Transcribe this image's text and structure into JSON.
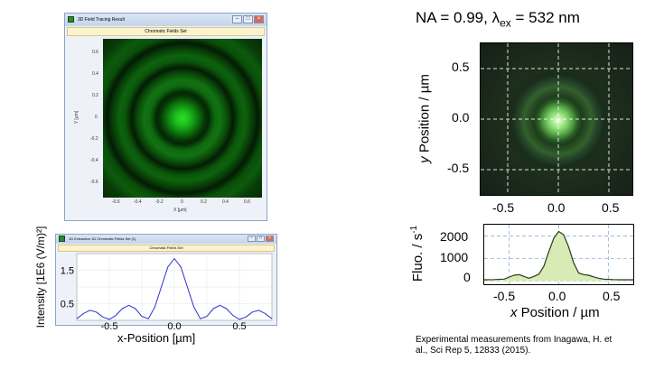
{
  "sim_field_window": {
    "title": "3D Field Tracing Result",
    "subtitle": "Chromatic Fields Set",
    "controls": [
      "–",
      "□",
      "×"
    ],
    "xlabel": "X [µm]",
    "ylabel": "Y [µm]",
    "xticks": [
      "-0.6",
      "-0.4",
      "-0.2",
      "0",
      "0.2",
      "0.4",
      "0.6"
    ],
    "yticks": [
      "0.6",
      "0.4",
      "0.2",
      "0",
      "-0.2",
      "-0.4",
      "-0.6"
    ],
    "colormap_color": "#1fd21f"
  },
  "sim_profile_window": {
    "title": "1D Extraction 1D Chromatic Fields Set (1)",
    "subtitle": "Chromatic Fields Set",
    "controls": [
      "–",
      "□",
      "×"
    ],
    "line_color": "#3030d0",
    "yticks": [
      "1.5",
      "0.5"
    ],
    "xticks": [
      "-0.5",
      "0.0",
      "0.5"
    ],
    "xlabel": "x-Position [µm]",
    "ylabel": "Intensity [1E6 (V/m)²]",
    "chart_data": {
      "type": "line",
      "x": [
        -0.75,
        -0.7,
        -0.65,
        -0.6,
        -0.55,
        -0.5,
        -0.45,
        -0.4,
        -0.35,
        -0.3,
        -0.25,
        -0.2,
        -0.15,
        -0.1,
        -0.05,
        0.0,
        0.05,
        0.1,
        0.15,
        0.2,
        0.25,
        0.3,
        0.35,
        0.4,
        0.45,
        0.5,
        0.55,
        0.6,
        0.65,
        0.7,
        0.75
      ],
      "values": [
        0.05,
        0.2,
        0.3,
        0.25,
        0.1,
        0.03,
        0.15,
        0.35,
        0.45,
        0.35,
        0.12,
        0.05,
        0.4,
        1.0,
        1.6,
        1.85,
        1.6,
        1.0,
        0.4,
        0.05,
        0.12,
        0.35,
        0.45,
        0.35,
        0.15,
        0.03,
        0.1,
        0.25,
        0.3,
        0.2,
        0.05
      ],
      "xlim": [
        -0.75,
        0.75
      ],
      "ylim": [
        0,
        2.0
      ]
    }
  },
  "experiment": {
    "title_pre": "NA = 0.99,  λ",
    "title_sub": "ex",
    "title_post": " = 532 nm",
    "image_ylabel_italic": "y",
    "image_ylabel_rest": " Position / µm",
    "image_yticks": [
      "0.5",
      "0.0",
      "-0.5"
    ],
    "image_xticks": [
      "-0.5",
      "0.0",
      "0.5"
    ],
    "profile_ylabel": "Fluo. / s",
    "profile_ylabel_sup": "-1",
    "profile_yticks": [
      "2000",
      "1000",
      "0"
    ],
    "profile_xticks": [
      "-0.5",
      "0.0",
      "0.5"
    ],
    "profile_xlabel_italic": "x",
    "profile_xlabel_rest": " Position / µm",
    "fill_color": "#d8ebb5",
    "line_color": "#2a3a1a",
    "chart_data": {
      "type": "area",
      "x": [
        -0.75,
        -0.65,
        -0.55,
        -0.45,
        -0.4,
        -0.35,
        -0.3,
        -0.25,
        -0.2,
        -0.15,
        -0.1,
        -0.05,
        0.0,
        0.05,
        0.1,
        0.15,
        0.2,
        0.25,
        0.3,
        0.35,
        0.4,
        0.45,
        0.55,
        0.65,
        0.75
      ],
      "values": [
        50,
        60,
        80,
        250,
        280,
        200,
        120,
        200,
        300,
        650,
        1300,
        1900,
        2200,
        2050,
        1500,
        800,
        350,
        280,
        250,
        180,
        120,
        80,
        60,
        50,
        50
      ],
      "xlim": [
        -0.75,
        0.75
      ],
      "ylim": [
        -150,
        2500
      ]
    }
  },
  "citation": {
    "line1": "Experimental measurements from Inagawa, H. et",
    "line2": "al.,  Sci Rep 5, 12833 (2015)."
  }
}
